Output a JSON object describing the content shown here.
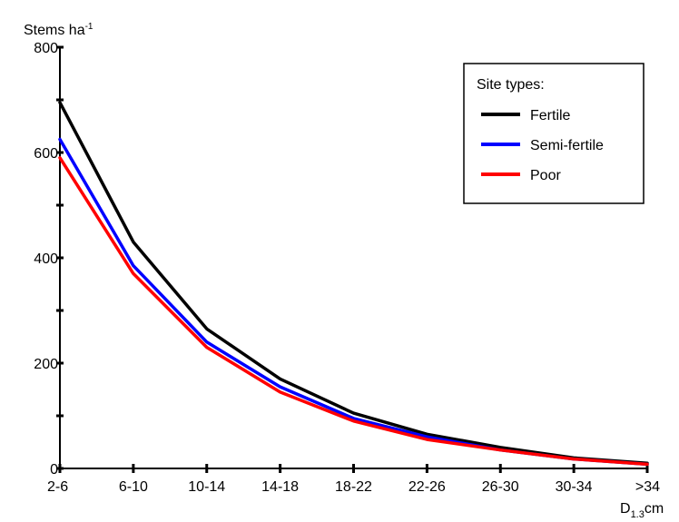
{
  "chart_data": {
    "type": "line",
    "ylabel": "Stems ha",
    "ylabel_superscript": "-1",
    "xlabel_prefix": "D",
    "xlabel_subscript": "1.3",
    "xlabel_suffix": "cm",
    "categories": [
      "2-6",
      "6-10",
      "10-14",
      "14-18",
      "18-22",
      "22-26",
      "26-30",
      "30-34",
      ">34"
    ],
    "ylim": [
      0,
      800
    ],
    "yticks": [
      0,
      200,
      400,
      600,
      800
    ],
    "grid": false,
    "legend": {
      "title": "Site types:",
      "placement": "top-right"
    },
    "series": [
      {
        "name": "Fertile",
        "color": "#000000",
        "values": [
          695,
          430,
          265,
          170,
          105,
          65,
          40,
          20,
          10
        ]
      },
      {
        "name": "Semi-fertile",
        "color": "#0000ff",
        "values": [
          625,
          385,
          240,
          155,
          95,
          60,
          35,
          18,
          8
        ]
      },
      {
        "name": "Poor",
        "color": "#ff0000",
        "values": [
          590,
          370,
          230,
          145,
          90,
          55,
          35,
          18,
          8
        ]
      }
    ]
  }
}
